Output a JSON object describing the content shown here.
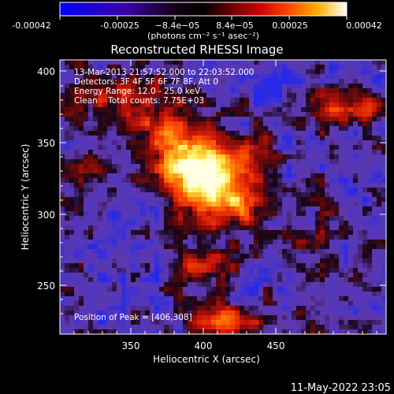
{
  "colorbar": {
    "ticks": [
      "-0.00042",
      "-0.00025",
      "−8.4e−05",
      "8.4e−05",
      "0.00025",
      "0.00042"
    ],
    "units": "(photons cm⁻² s⁻¹ asec⁻²)",
    "palette": [
      "#0000ff",
      "#3a00b0",
      "#000000",
      "#6a0000",
      "#d00000",
      "#ff4000",
      "#ff9000",
      "#ffff60",
      "#ffffff"
    ]
  },
  "image": {
    "title": "Reconstructed RHESSI Image",
    "info_lines": [
      "13-Mar-2013 21:57:52.000 to 22:03:52.000",
      "Detectors: 3F 4F 5F 6F 7F 8F, Att 0",
      "Energy Range: 12.0 - 25.0 keV",
      "Clean    Total counts: 7.75E+03"
    ],
    "peak_label": "Position of Peak = [406,308]",
    "x_axis": {
      "label": "Heliocentric X (arcsec)",
      "tick_labels": [
        "350",
        "400",
        "450"
      ],
      "range": [
        304,
        490
      ]
    },
    "y_axis": {
      "label": "Heliocentric Y (arcsec)",
      "tick_labels": [
        "250",
        "300",
        "350",
        "400"
      ],
      "range": [
        214,
        407
      ]
    }
  },
  "footer": {
    "timestamp": "11-May-2022 23:05"
  }
}
